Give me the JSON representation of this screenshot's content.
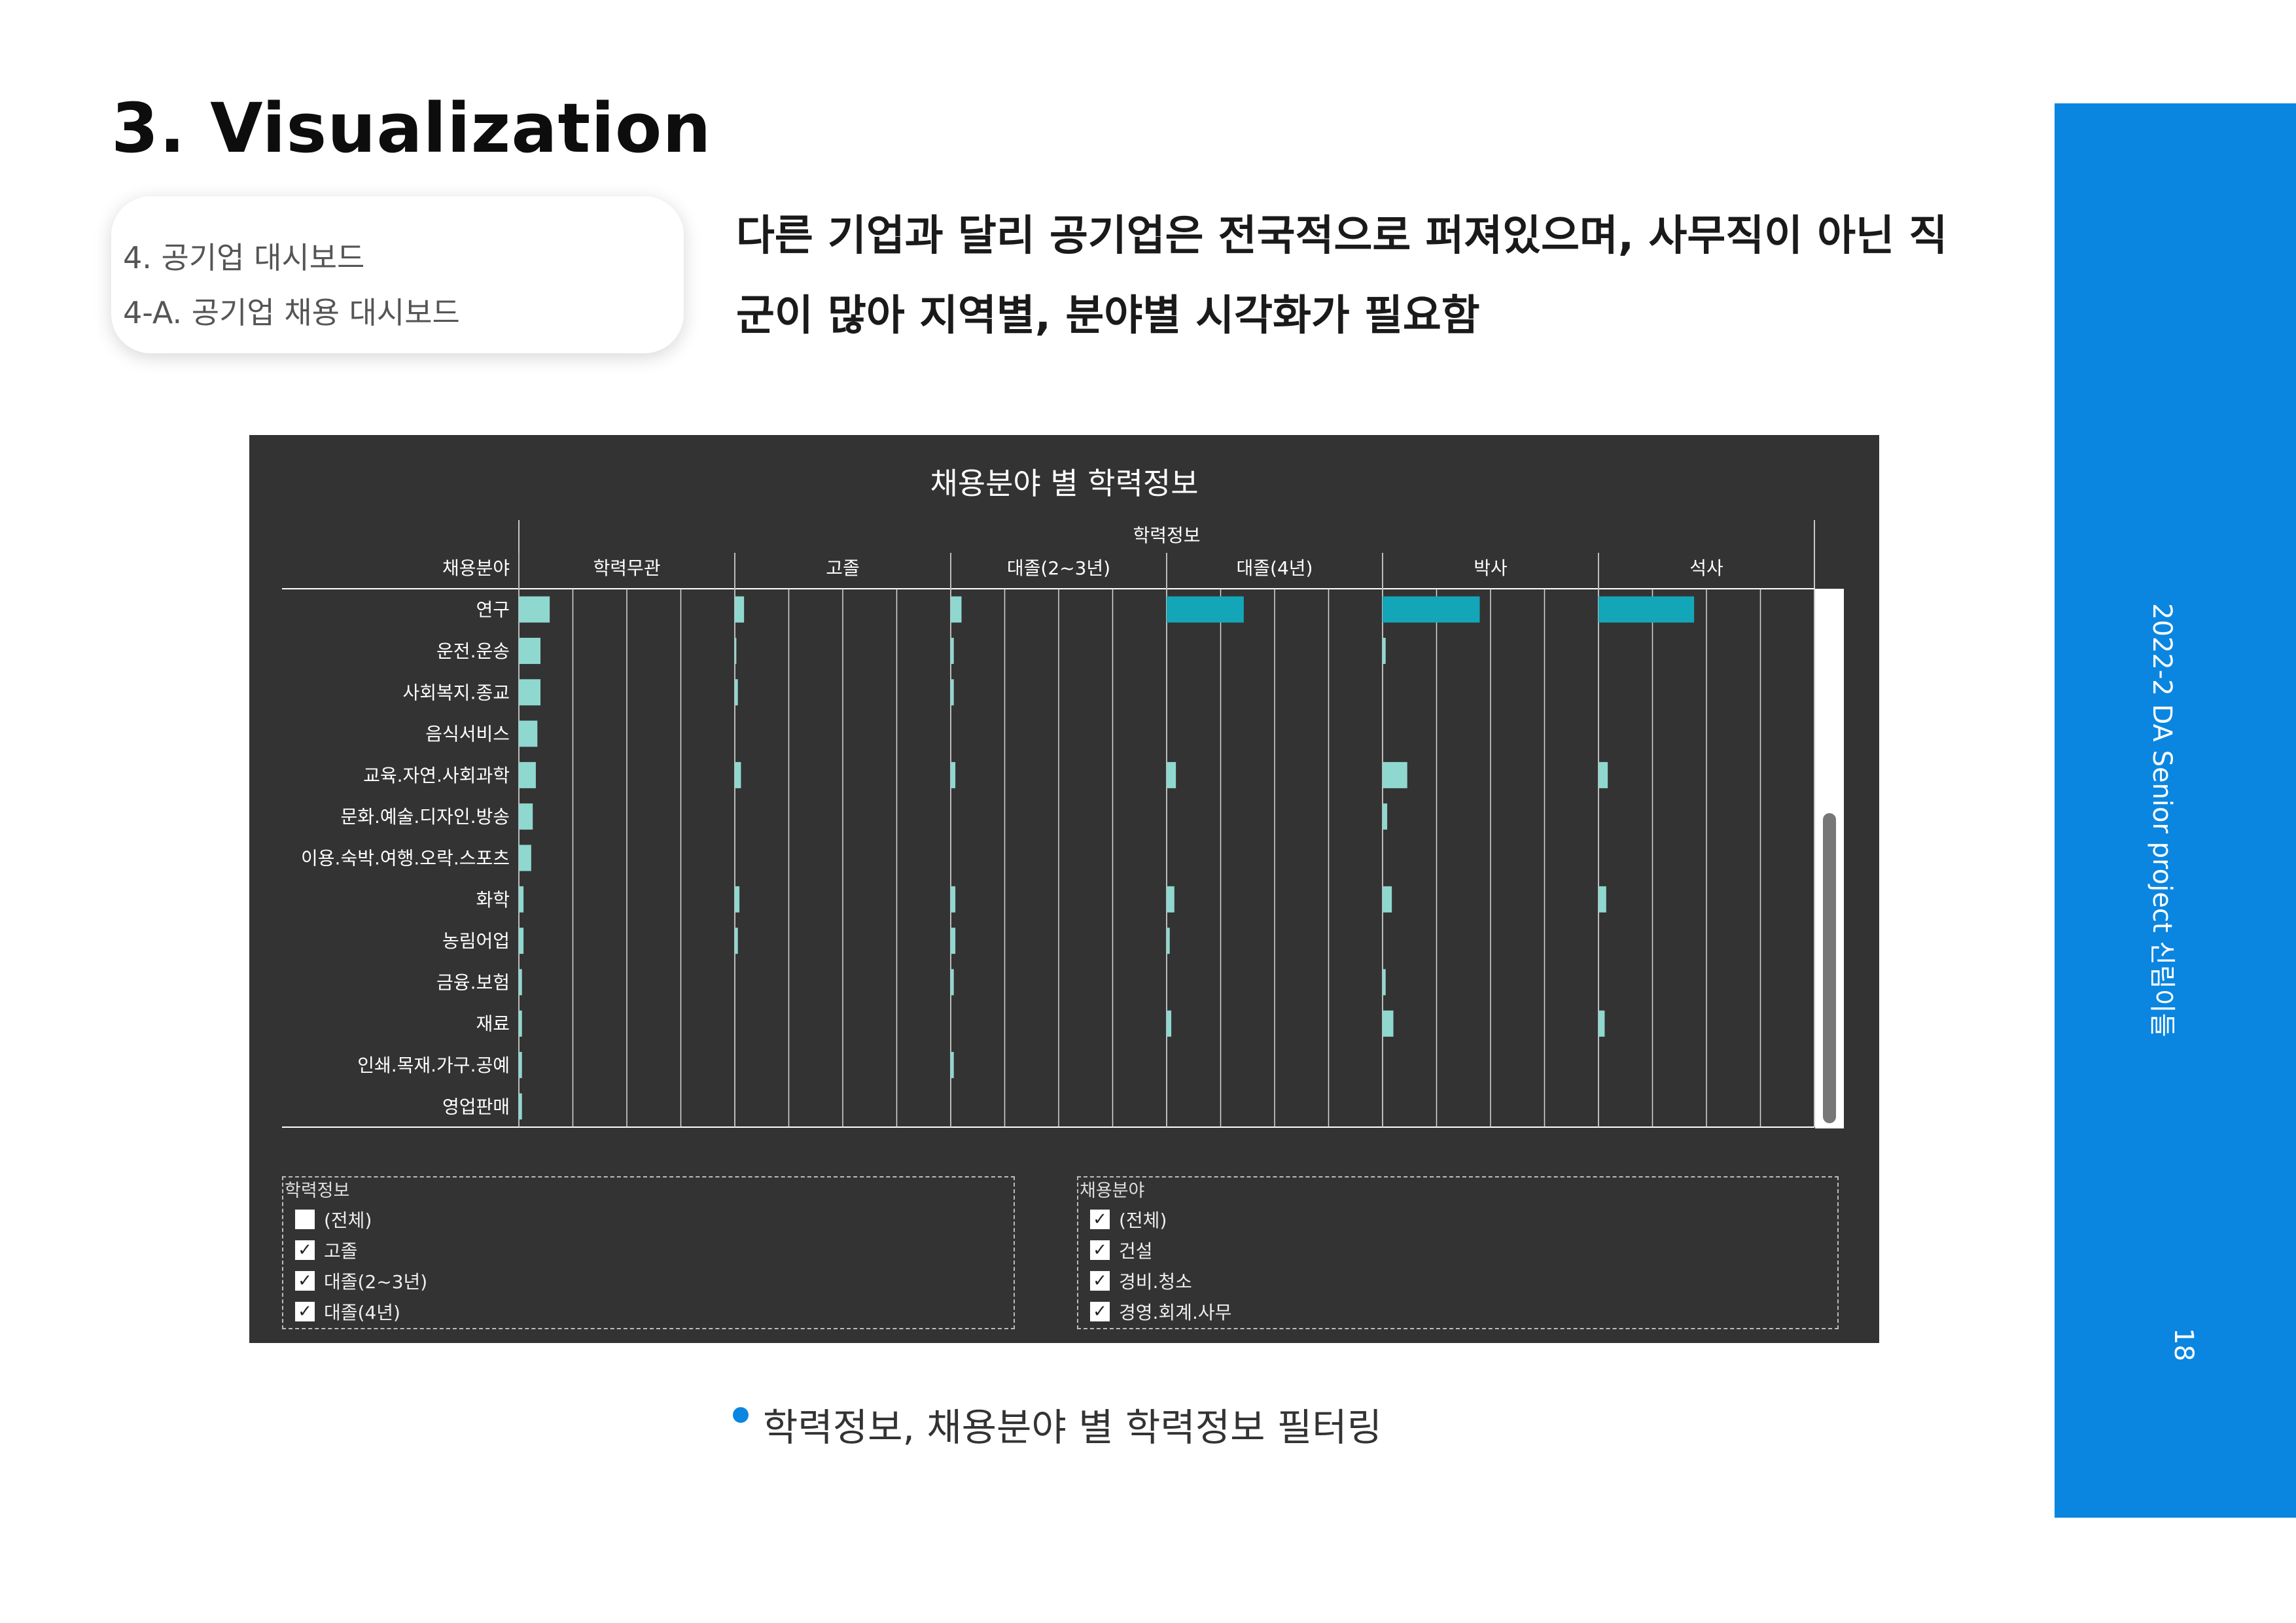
{
  "slide": {
    "title": "3. Visualization",
    "nav": [
      "4. 공기업 대시보드",
      "4-A. 공기업 채용 대시보드"
    ],
    "headline": "다른 기업과 달리 공기업은 전국적으로 퍼져있으며, 사무직이 아닌 직군이 많아 지역별, 분야별 시각화가 필요함",
    "caption": "학력정보, 채용분야 별 학력정보 필터링",
    "side_title": "2022-2 DA Senior project 신림이들",
    "page_number": "18",
    "accent_color": "#0a86e0"
  },
  "dashboard": {
    "background": "#333333",
    "title": "채용분야 별 학력정보"
  },
  "chart_data": {
    "type": "bar",
    "title": "채용분야 별 학력정보",
    "column_header": "학력정보",
    "row_header": "채용분야",
    "columns": [
      "학력무관",
      "고졸",
      "대졸(2~3년)",
      "대졸(4년)",
      "박사",
      "석사"
    ],
    "categories": [
      "연구",
      "운전.운송",
      "사회복지.종교",
      "음식서비스",
      "교육.자연.사회과학",
      "문화.예술.디자인.방송",
      "이용.숙박.여행.오락.스포츠",
      "화학",
      "농림어업",
      "금융.보험",
      "재료",
      "인쇄.목재.가구.공예",
      "영업판매"
    ],
    "series": [
      {
        "name": "학력무관",
        "values": [
          20,
          14,
          14,
          12,
          11,
          9,
          8,
          3,
          3,
          2,
          2,
          2,
          2
        ]
      },
      {
        "name": "고졸",
        "values": [
          6,
          1,
          2,
          0,
          4,
          0,
          0,
          3,
          2,
          0,
          0,
          0,
          0
        ]
      },
      {
        "name": "대졸(2~3년)",
        "values": [
          7,
          2,
          2,
          0,
          3,
          0,
          0,
          3,
          3,
          2,
          0,
          2,
          0
        ]
      },
      {
        "name": "대졸(4년)",
        "values": [
          50,
          0,
          0,
          0,
          6,
          0,
          0,
          5,
          2,
          0,
          3,
          0,
          0
        ]
      },
      {
        "name": "박사",
        "values": [
          63,
          2,
          0,
          0,
          16,
          3,
          0,
          6,
          0,
          2,
          7,
          0,
          0
        ]
      },
      {
        "name": "석사",
        "values": [
          62,
          0,
          0,
          0,
          6,
          0,
          0,
          5,
          0,
          0,
          4,
          0,
          0
        ]
      }
    ],
    "xlim": [
      0,
      140
    ],
    "colors": {
      "low": "#8fd8cf",
      "high": "#13a6b8"
    }
  },
  "filters": {
    "education": {
      "title": "학력정보",
      "items": [
        {
          "label": "(전체)",
          "checked": false
        },
        {
          "label": "고졸",
          "checked": true
        },
        {
          "label": "대졸(2~3년)",
          "checked": true
        },
        {
          "label": "대졸(4년)",
          "checked": true
        }
      ]
    },
    "field": {
      "title": "채용분야",
      "items": [
        {
          "label": "(전체)",
          "checked": true
        },
        {
          "label": "건설",
          "checked": true
        },
        {
          "label": "경비.청소",
          "checked": true
        },
        {
          "label": "경영.회계.사무",
          "checked": true
        }
      ]
    }
  }
}
